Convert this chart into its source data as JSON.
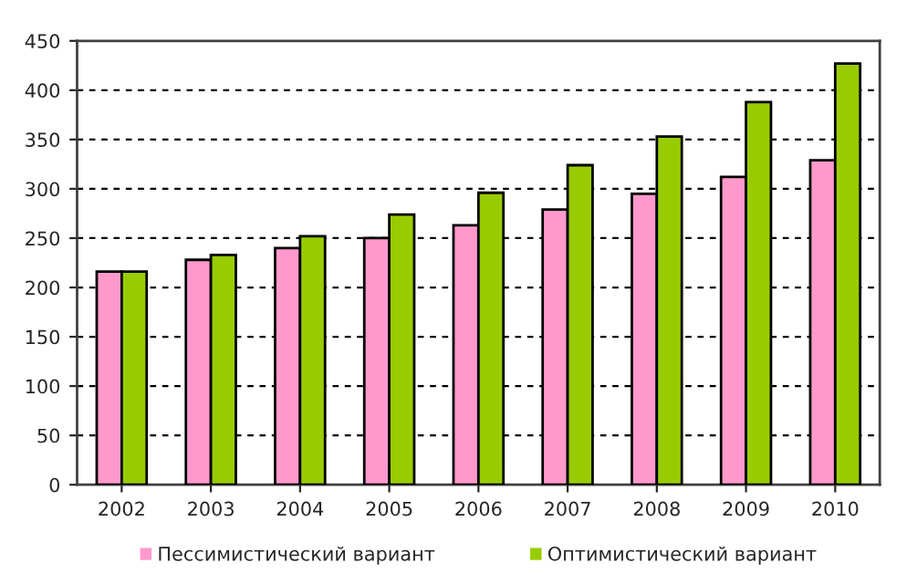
{
  "chart_data": {
    "type": "bar",
    "categories": [
      "2002",
      "2003",
      "2004",
      "2005",
      "2006",
      "2007",
      "2008",
      "2009",
      "2010"
    ],
    "series": [
      {
        "name": "Пессимистический вариант",
        "color": "#ff99cc",
        "values": [
          216,
          228,
          240,
          250,
          263,
          279,
          295,
          312,
          329
        ]
      },
      {
        "name": "Оптимистический вариант",
        "color": "#99cc00",
        "values": [
          216,
          233,
          252,
          274,
          296,
          324,
          353,
          388,
          427
        ]
      }
    ],
    "ylim": [
      0,
      450
    ],
    "yticks": [
      0,
      50,
      100,
      150,
      200,
      250,
      300,
      350,
      400,
      450
    ],
    "grid": "y",
    "legend": "bottom"
  }
}
